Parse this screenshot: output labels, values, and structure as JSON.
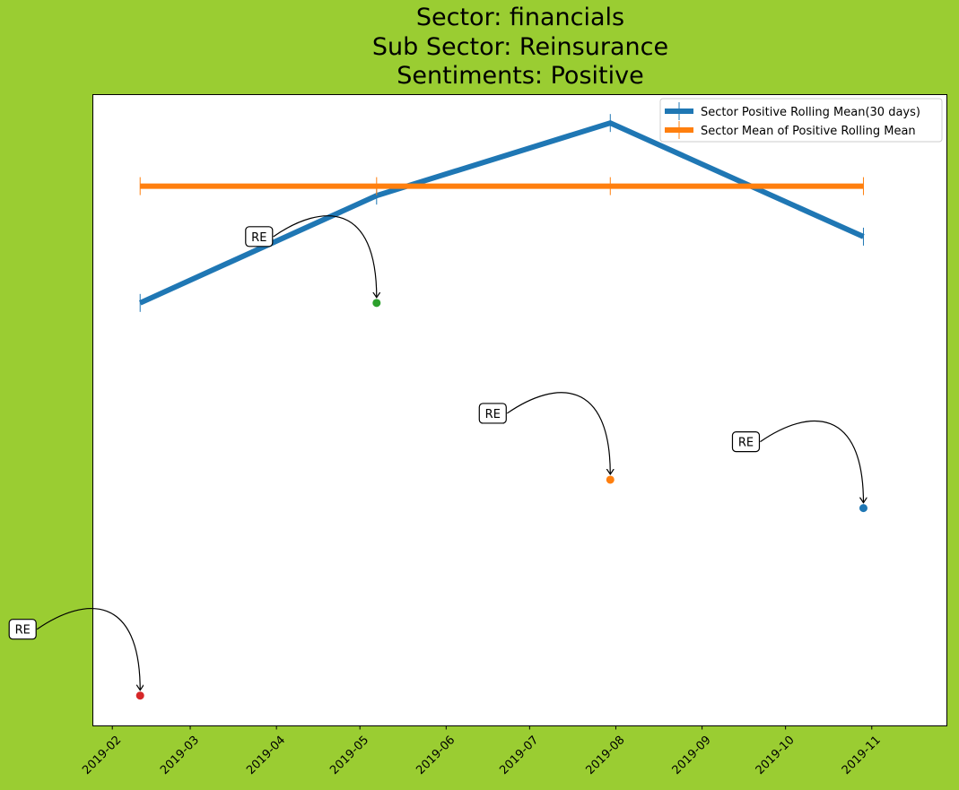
{
  "title_lines": [
    "Sector:  financials",
    "Sub Sector:  Reinsurance",
    "Sentiments:  Positive"
  ],
  "chart_data": {
    "type": "line",
    "x_axis": {
      "type": "date",
      "range": [
        "2019-01-25",
        "2019-11-28"
      ],
      "tick_labels": [
        "2019-02",
        "2019-03",
        "2019-04",
        "2019-05",
        "2019-06",
        "2019-07",
        "2019-08",
        "2019-09",
        "2019-10",
        "2019-11"
      ]
    },
    "y_axis": {
      "tick_labels": [],
      "range": [
        0,
        1
      ]
    },
    "grid": false,
    "legend_position": "top-right",
    "series": [
      {
        "name": "Sector Positive Rolling Mean(30 days)",
        "color": "#1f77b4",
        "x": [
          "2019-02-11",
          "2019-05-07",
          "2019-07-30",
          "2019-10-29"
        ],
        "y": [
          0.67,
          0.84,
          0.955,
          0.775
        ]
      },
      {
        "name": "Sector Mean of Positive Rolling Mean",
        "color": "#ff7f0e",
        "x": [
          "2019-02-11",
          "2019-05-07",
          "2019-07-30",
          "2019-10-29"
        ],
        "y": [
          0.855,
          0.855,
          0.855,
          0.855
        ]
      }
    ],
    "points": [
      {
        "label": "RE",
        "x": "2019-02-11",
        "y": 0.048,
        "color": "#d62728"
      },
      {
        "label": "RE",
        "x": "2019-05-07",
        "y": 0.67,
        "color": "#2ca02c"
      },
      {
        "label": "RE",
        "x": "2019-07-30",
        "y": 0.39,
        "color": "#ff7f0e"
      },
      {
        "label": "RE",
        "x": "2019-10-29",
        "y": 0.345,
        "color": "#1f77b4"
      }
    ]
  }
}
